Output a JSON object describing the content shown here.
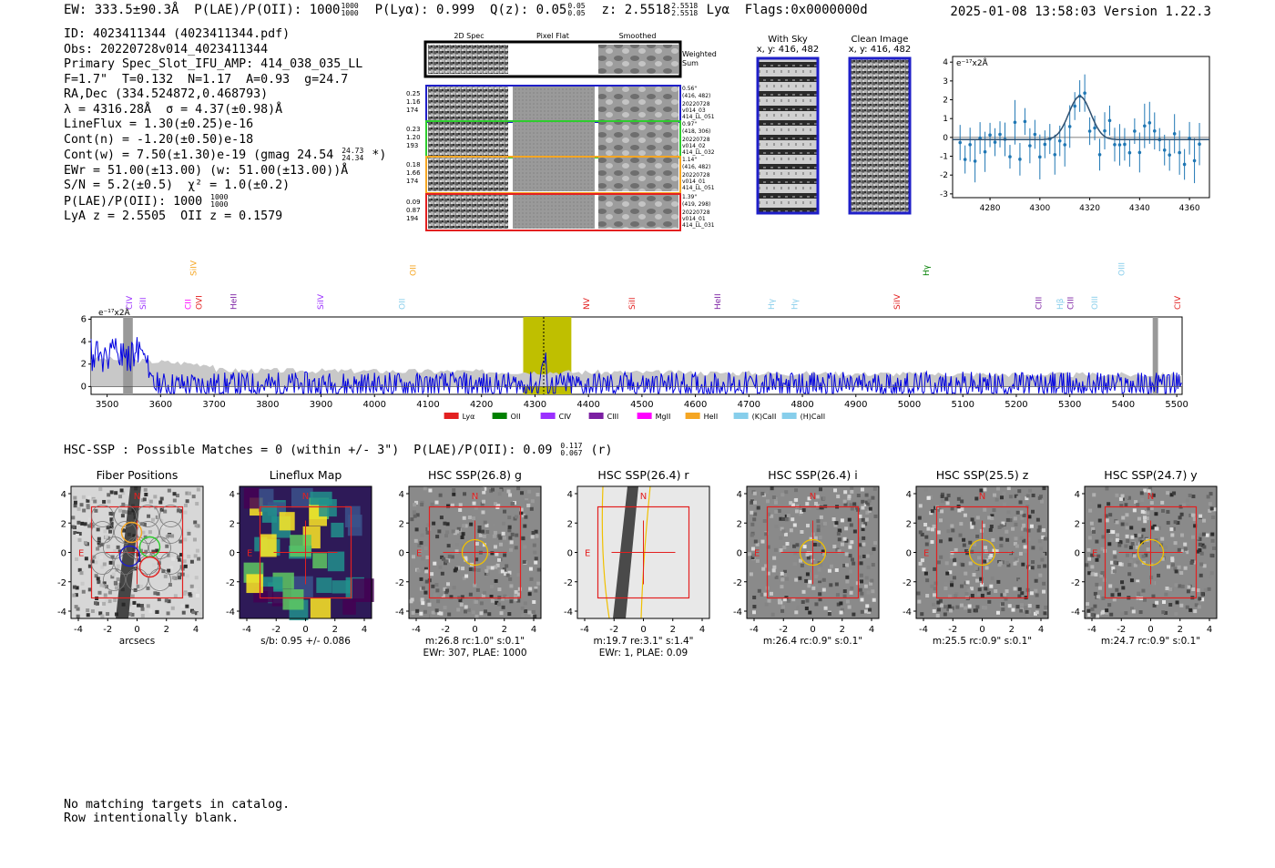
{
  "header": {
    "ew": "EW: 333.5±90.3Å",
    "plae": "P(LAE)/P(OII): 1000",
    "plae_hi": "1000",
    "plae_lo": "1000",
    "plya": "P(Lyα): 0.999",
    "qz": "Q(z): 0.05",
    "qz_hi": "0.05",
    "qz_lo": "0.05",
    "z": "z: 2.5518",
    "z_hi": "2.5518",
    "z_lo": "2.5518",
    "line": "Lyα",
    "flags": "Flags:0x0000000d",
    "timestamp": "2025-01-08 13:58:03",
    "version": "Version 1.22.3"
  },
  "info": {
    "id": "ID: 4023411344 (4023411344.pdf)",
    "obs": "Obs: 20220728v014_4023411344",
    "primary": "Primary Spec_Slot_IFU_AMP: 414_038_035_LL",
    "params": "F=1.7\"  T=0.132  N=1.17  A=0.93  g=24.7",
    "radec": "RA,Dec (334.524872,0.468793)",
    "lambda": "λ = 4316.28Å  σ = 4.37(±0.98)Å",
    "lineflux": "LineFlux = 1.30(±0.25)e-16",
    "contn": "Cont(n) = -1.20(±0.50)e-18",
    "contw": "Cont(w) = 7.50(±1.30)e-19 (gmag 24.54",
    "contw_hi": "24.73",
    "contw_lo": "24.34",
    "contw_end": "*)",
    "ewr": "EWr = 51.00(±13.00) (w: 51.00(±13.00))Å",
    "sn": "S/N = 5.2(±0.5)  χ² = 1.0(±0.2)",
    "plae": "P(LAE)/P(OII): 1000",
    "plae_hi": "1000",
    "plae_lo": "1000",
    "lyaz": "LyA z = 2.5505  OII z = 0.1579"
  },
  "cutouts": {
    "col_headers": [
      "2D Spec",
      "Pixel Flat",
      "Smoothed"
    ],
    "weighted_sum": [
      "Weighted",
      "Sum"
    ],
    "rows": [
      {
        "left": [
          "0.25",
          "1.16",
          "174"
        ],
        "right": [
          "0.56\"",
          "(416, 482)",
          "20220728",
          "v014_03",
          "414_LL_051"
        ],
        "color": "#1f1fc8"
      },
      {
        "left": [
          "0.23",
          "1.20",
          "193"
        ],
        "right": [
          "0.97\"",
          "(418, 306)",
          "20220728",
          "v014_02",
          "414_LL_032"
        ],
        "color": "#2ecc2e"
      },
      {
        "left": [
          "0.18",
          "1.66",
          "174"
        ],
        "right": [
          "1.14\"",
          "(416, 482)",
          "20220728",
          "v014_01",
          "414_LL_051"
        ],
        "color": "#f5a623"
      },
      {
        "left": [
          "0.09",
          "0.87",
          "194"
        ],
        "right": [
          "1.39\"",
          "(419, 298)",
          "20220728",
          "v014_01",
          "414_LL_031"
        ],
        "color": "#e32020"
      }
    ]
  },
  "sky": {
    "with_sky": "With Sky",
    "with_sky_xy": "x, y: 416, 482",
    "clean": "Clean Image",
    "clean_xy": "x, y: 416, 482"
  },
  "zoom_chart": {
    "ylabel": "e⁻¹⁷x2Å",
    "xticks": [
      "4280",
      "4300",
      "4320",
      "4340",
      "4360"
    ],
    "yticks": [
      "4",
      "3",
      "2",
      "1",
      "0",
      "-1",
      "-2",
      "-3"
    ]
  },
  "chart_data": {
    "type": "line",
    "title": "",
    "ylabel": "e⁻¹⁷x2Å",
    "xlim": [
      3470,
      5510
    ],
    "ylim": [
      -0.7,
      6.2
    ],
    "xticks": [
      "3500",
      "3600",
      "3700",
      "3800",
      "3900",
      "4000",
      "4100",
      "4200",
      "4300",
      "4400",
      "4500",
      "4600",
      "4700",
      "4800",
      "4900",
      "5000",
      "5100",
      "5200",
      "5300",
      "5400",
      "5500"
    ],
    "yticks": [
      "6",
      "4",
      "2",
      "0"
    ],
    "highlight": [
      4278,
      4368
    ],
    "line_center": 4316.28,
    "lines": [
      {
        "name": "CIV",
        "wl": 3540,
        "color": "#9b30ff"
      },
      {
        "name": "SiII",
        "wl": 3565,
        "color": "#9b30ff"
      },
      {
        "name": "CII",
        "wl": 3650,
        "color": "#ff00ff"
      },
      {
        "name": "SiIV",
        "wl": 3660,
        "color": "#f5a623"
      },
      {
        "name": "OVI",
        "wl": 3670,
        "color": "#e32020"
      },
      {
        "name": "HeII",
        "wl": 3735,
        "color": "#7b1fa2"
      },
      {
        "name": "SiIV",
        "wl": 3897,
        "color": "#9b30ff"
      },
      {
        "name": "OII",
        "wl": 4050,
        "color": "#87ceeb"
      },
      {
        "name": "OII",
        "wl": 4070,
        "color": "#f5a623"
      },
      {
        "name": "NV",
        "wl": 4395,
        "color": "#e32020"
      },
      {
        "name": "SiII",
        "wl": 4480,
        "color": "#e32020"
      },
      {
        "name": "HeII",
        "wl": 4640,
        "color": "#7b1fa2"
      },
      {
        "name": "Hγ",
        "wl": 4740,
        "color": "#87ceeb"
      },
      {
        "name": "Hγ",
        "wl": 4784,
        "color": "#87ceeb"
      },
      {
        "name": "SiIV",
        "wl": 4975,
        "color": "#e32020"
      },
      {
        "name": "Hγ",
        "wl": 5030,
        "color": "#008000"
      },
      {
        "name": "CIII",
        "wl": 5240,
        "color": "#7b1fa2"
      },
      {
        "name": "Hβ",
        "wl": 5280,
        "color": "#87ceeb"
      },
      {
        "name": "CIII",
        "wl": 5300,
        "color": "#7b1fa2"
      },
      {
        "name": "OIII",
        "wl": 5345,
        "color": "#87ceeb"
      },
      {
        "name": "OIII",
        "wl": 5395,
        "color": "#87ceeb"
      },
      {
        "name": "CIV",
        "wl": 5500,
        "color": "#e32020"
      }
    ],
    "legend": [
      {
        "label": "Lyα",
        "color": "#e32020"
      },
      {
        "label": "OII",
        "color": "#008000"
      },
      {
        "label": "CIV",
        "color": "#9b30ff"
      },
      {
        "label": "CIII",
        "color": "#7b1fa2"
      },
      {
        "label": "MgII",
        "color": "#ff00ff"
      },
      {
        "label": "HeII",
        "color": "#f5a623"
      },
      {
        "label": "(K)CaII",
        "color": "#87ceeb"
      },
      {
        "label": "(H)CaII",
        "color": "#87ceeb"
      }
    ]
  },
  "hsc": {
    "line": "HSC-SSP : Possible Matches = 0 (within +/- 3\")  P(LAE)/P(OII): 0.09",
    "plae_hi": "0.117",
    "plae_lo": "0.067",
    "band": "(r)",
    "panels": [
      {
        "title": "Fiber Positions",
        "cap1": "arcsecs",
        "cap2": ""
      },
      {
        "title": "Lineflux Map",
        "cap1": "s/b: 0.95 +/- 0.086",
        "cap2": ""
      },
      {
        "title": "HSC SSP(26.8) g",
        "cap1": "m:26.8 rc:1.0\"  s:0.1\"",
        "cap2": "EWr: 307, PLAE: 1000"
      },
      {
        "title": "HSC SSP(26.4) r",
        "cap1": "m:19.7  re:3.1\"  s:1.4\"",
        "cap2": "EWr: 1, PLAE: 0.09"
      },
      {
        "title": "HSC SSP(26.4) i",
        "cap1": "m:26.4 rc:0.9\"  s:0.1\"",
        "cap2": ""
      },
      {
        "title": "HSC SSP(25.5) z",
        "cap1": "m:25.5 rc:0.9\"  s:0.1\"",
        "cap2": ""
      },
      {
        "title": "HSC SSP(24.7) y",
        "cap1": "m:24.7 rc:0.9\"  s:0.1\"",
        "cap2": ""
      }
    ],
    "ticks": [
      "4",
      "2",
      "0",
      "-2",
      "-4"
    ],
    "xticks": [
      "-4",
      "-2",
      "0",
      "2",
      "4"
    ],
    "north": "N",
    "east": "E"
  },
  "footer": {
    "line1": "No matching targets in catalog.",
    "line2": "Row intentionally blank."
  }
}
